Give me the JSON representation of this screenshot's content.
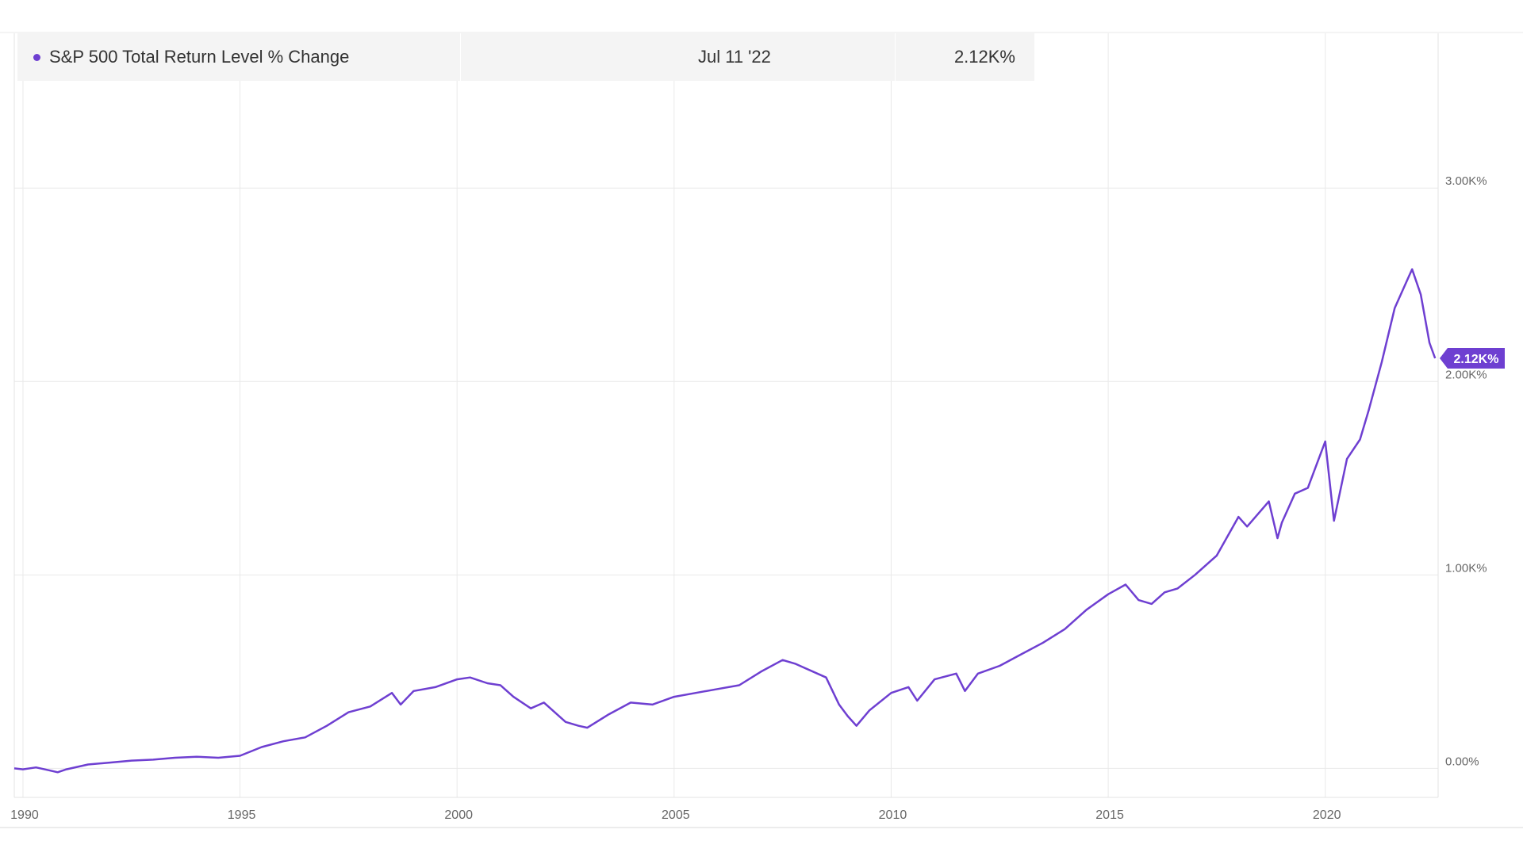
{
  "chart_data": {
    "type": "line",
    "title": "",
    "xlabel": "",
    "ylabel": "",
    "x_range": [
      1989.8,
      2022.6
    ],
    "ylim": [
      -150,
      3800
    ],
    "x_ticks": [
      {
        "value": 1990,
        "label": "1990"
      },
      {
        "value": 1995,
        "label": "1995"
      },
      {
        "value": 2000,
        "label": "2000"
      },
      {
        "value": 2005,
        "label": "2005"
      },
      {
        "value": 2010,
        "label": "2010"
      },
      {
        "value": 2015,
        "label": "2015"
      },
      {
        "value": 2020,
        "label": "2020"
      }
    ],
    "y_ticks": [
      {
        "value": 0,
        "label": "0.00%"
      },
      {
        "value": 1000,
        "label": "1.00K%"
      },
      {
        "value": 2000,
        "label": "2.00K%"
      },
      {
        "value": 3000,
        "label": "3.00K%"
      }
    ],
    "grid": true,
    "legend_position": "top-left",
    "series": [
      {
        "name": "S&P 500 Total Return Level % Change",
        "color": "#6e3fd1",
        "points": [
          [
            1989.8,
            0
          ],
          [
            1990.0,
            -5
          ],
          [
            1990.3,
            5
          ],
          [
            1990.6,
            -10
          ],
          [
            1990.8,
            -20
          ],
          [
            1991.0,
            -5
          ],
          [
            1991.5,
            20
          ],
          [
            1992.0,
            30
          ],
          [
            1992.5,
            40
          ],
          [
            1993.0,
            45
          ],
          [
            1993.5,
            55
          ],
          [
            1994.0,
            60
          ],
          [
            1994.5,
            55
          ],
          [
            1995.0,
            65
          ],
          [
            1995.5,
            110
          ],
          [
            1996.0,
            140
          ],
          [
            1996.5,
            160
          ],
          [
            1997.0,
            220
          ],
          [
            1997.5,
            290
          ],
          [
            1998.0,
            320
          ],
          [
            1998.5,
            390
          ],
          [
            1998.7,
            330
          ],
          [
            1999.0,
            400
          ],
          [
            1999.5,
            420
          ],
          [
            2000.0,
            460
          ],
          [
            2000.3,
            470
          ],
          [
            2000.7,
            440
          ],
          [
            2001.0,
            430
          ],
          [
            2001.3,
            370
          ],
          [
            2001.7,
            310
          ],
          [
            2002.0,
            340
          ],
          [
            2002.5,
            240
          ],
          [
            2002.8,
            220
          ],
          [
            2003.0,
            210
          ],
          [
            2003.5,
            280
          ],
          [
            2004.0,
            340
          ],
          [
            2004.5,
            330
          ],
          [
            2005.0,
            370
          ],
          [
            2005.5,
            390
          ],
          [
            2006.0,
            410
          ],
          [
            2006.5,
            430
          ],
          [
            2007.0,
            500
          ],
          [
            2007.5,
            560
          ],
          [
            2007.8,
            540
          ],
          [
            2008.0,
            520
          ],
          [
            2008.5,
            470
          ],
          [
            2008.8,
            330
          ],
          [
            2009.0,
            270
          ],
          [
            2009.2,
            220
          ],
          [
            2009.5,
            300
          ],
          [
            2010.0,
            390
          ],
          [
            2010.4,
            420
          ],
          [
            2010.6,
            350
          ],
          [
            2011.0,
            460
          ],
          [
            2011.5,
            490
          ],
          [
            2011.7,
            400
          ],
          [
            2012.0,
            490
          ],
          [
            2012.5,
            530
          ],
          [
            2013.0,
            590
          ],
          [
            2013.5,
            650
          ],
          [
            2014.0,
            720
          ],
          [
            2014.5,
            820
          ],
          [
            2015.0,
            900
          ],
          [
            2015.4,
            950
          ],
          [
            2015.7,
            870
          ],
          [
            2016.0,
            850
          ],
          [
            2016.3,
            910
          ],
          [
            2016.6,
            930
          ],
          [
            2017.0,
            1000
          ],
          [
            2017.5,
            1100
          ],
          [
            2018.0,
            1300
          ],
          [
            2018.2,
            1250
          ],
          [
            2018.7,
            1380
          ],
          [
            2018.9,
            1190
          ],
          [
            2019.0,
            1270
          ],
          [
            2019.3,
            1420
          ],
          [
            2019.6,
            1450
          ],
          [
            2020.0,
            1690
          ],
          [
            2020.2,
            1280
          ],
          [
            2020.5,
            1600
          ],
          [
            2020.8,
            1700
          ],
          [
            2021.0,
            1850
          ],
          [
            2021.3,
            2100
          ],
          [
            2021.6,
            2380
          ],
          [
            2021.9,
            2530
          ],
          [
            2022.0,
            2580
          ],
          [
            2022.2,
            2450
          ],
          [
            2022.4,
            2200
          ],
          [
            2022.53,
            2120
          ]
        ]
      }
    ],
    "last_value_label": "2.12K%",
    "tooltip": {
      "date": "Jul 11 '22",
      "value": "2.12K%"
    }
  }
}
